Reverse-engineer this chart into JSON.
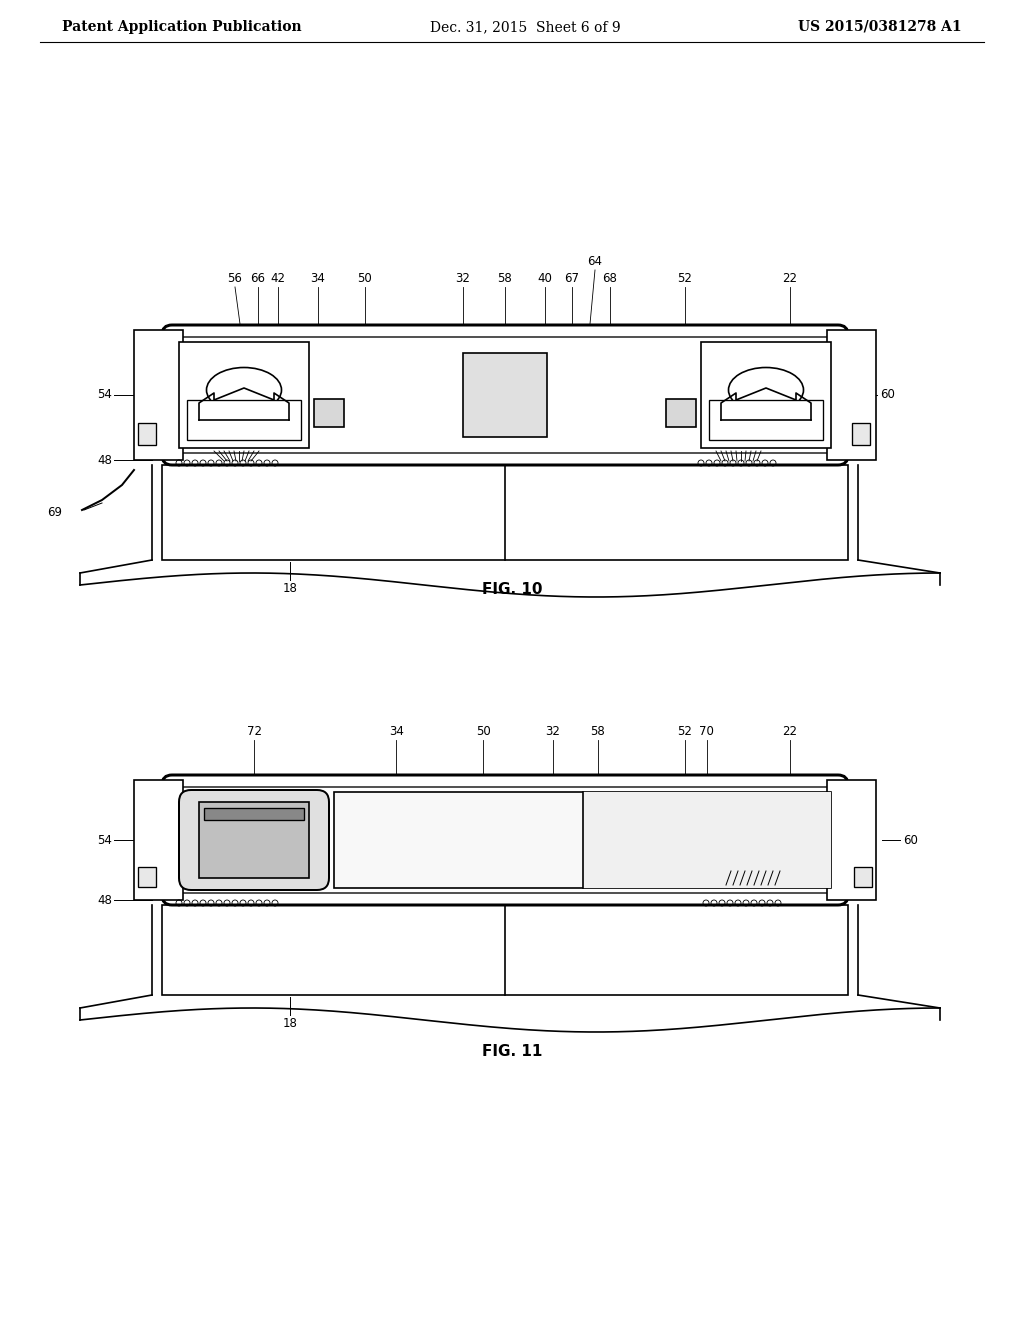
{
  "background_color": "#ffffff",
  "header_left": "Patent Application Publication",
  "header_center": "Dec. 31, 2015  Sheet 6 of 9",
  "header_right": "US 2015/0381278 A1",
  "fig10_caption": "FIG. 10",
  "fig11_caption": "FIG. 11",
  "line_color": "#000000",
  "line_width": 1.2,
  "label_fontsize": 8.5,
  "header_fontsize": 10,
  "caption_fontsize": 11
}
